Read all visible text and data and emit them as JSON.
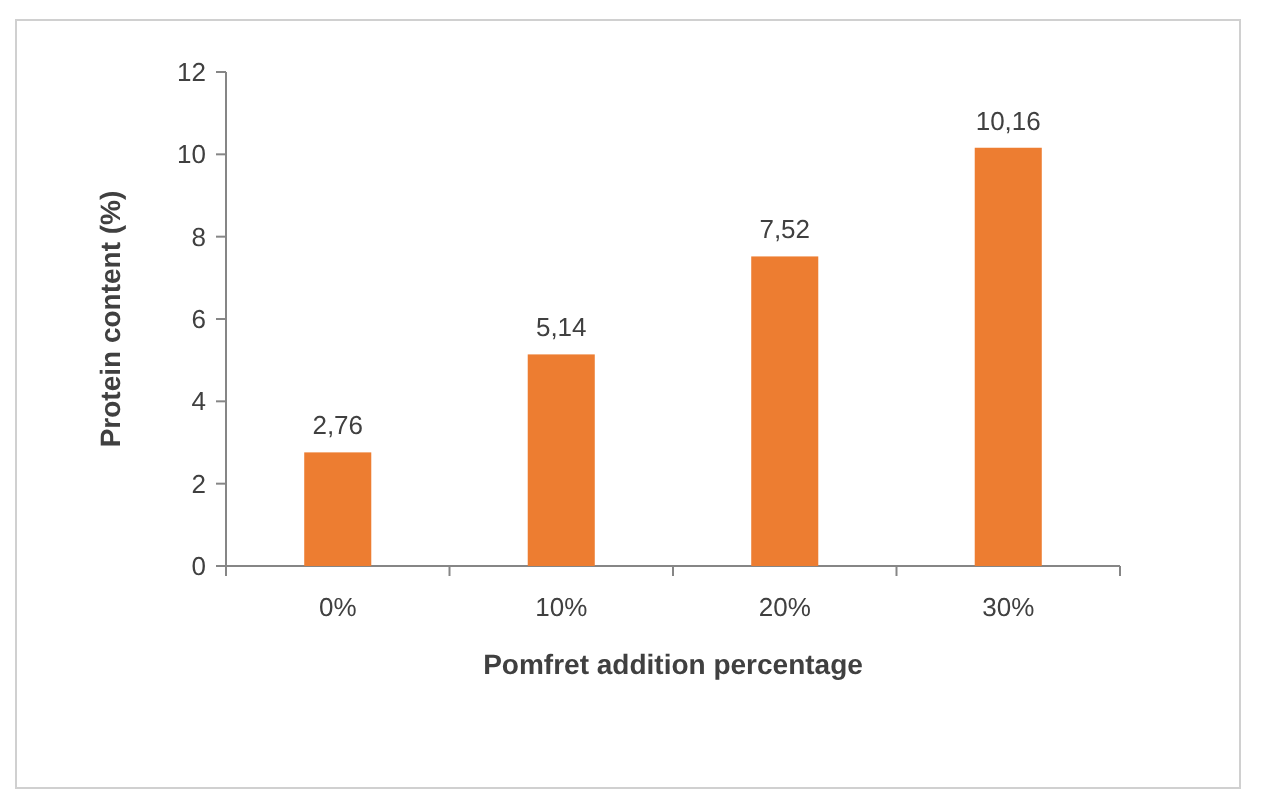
{
  "chart_data": {
    "type": "bar",
    "xlabel": "Pomfret addition percentage",
    "ylabel": "Protein content (%)",
    "categories": [
      "0%",
      "10%",
      "20%",
      "30%"
    ],
    "values": [
      2.76,
      5.14,
      7.52,
      10.16
    ],
    "value_labels": [
      "2,76",
      "5,14",
      "7,52",
      "10,16"
    ],
    "color": "#ed7d31",
    "ylim": [
      0,
      12
    ],
    "yticks": [
      0,
      2,
      4,
      6,
      8,
      10,
      12
    ],
    "grid": false
  }
}
